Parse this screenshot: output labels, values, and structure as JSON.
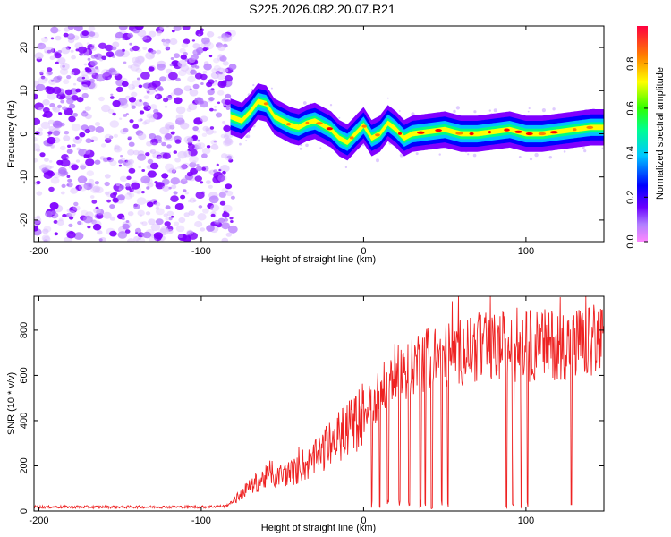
{
  "figure": {
    "title": "S225.2026.082.20.07.R21"
  },
  "chart_data": [
    {
      "type": "heatmap",
      "name": "spectrogram",
      "xlabel": "Height of straight line (km)",
      "ylabel": "Frequency (Hz)",
      "xlim": [
        -203,
        148
      ],
      "ylim": [
        -25,
        25
      ],
      "xticks": [
        -200,
        -100,
        0,
        100
      ],
      "yticks": [
        -20,
        -10,
        0,
        10,
        20
      ],
      "noise_region_x": [
        -203,
        -80
      ],
      "signal_region_x": [
        -82,
        148
      ],
      "colormap": [
        "#ff00ff",
        "#8000ff",
        "#0000ff",
        "#00c0ff",
        "#00ff80",
        "#40ff00",
        "#ffff00",
        "#ff8000",
        "#ff0000"
      ],
      "signal_ridge": {
        "x": [
          -82,
          -75,
          -70,
          -65,
          -60,
          -55,
          -50,
          -45,
          -40,
          -35,
          -30,
          -25,
          -20,
          -15,
          -10,
          -5,
          0,
          5,
          10,
          15,
          20,
          25,
          30,
          40,
          50,
          60,
          70,
          80,
          90,
          100,
          110,
          120,
          130,
          140,
          148
        ],
        "y": [
          4,
          3,
          5,
          7.5,
          7,
          4,
          3,
          2,
          1.5,
          2.5,
          3,
          2,
          1,
          -1,
          -2,
          0,
          2,
          -1,
          0,
          2.5,
          1,
          -1,
          0,
          0.5,
          1,
          0,
          0,
          0.5,
          1,
          0,
          0,
          0.5,
          1,
          1.5,
          1.5
        ]
      },
      "colorbar": {
        "label": "Normalized spectral amplitude",
        "ticks": [
          0.0,
          0.2,
          0.4,
          0.6,
          0.8
        ],
        "tick_labels": [
          "0.0",
          "0.2",
          "0.4",
          "0.6",
          "0.8"
        ],
        "range": [
          0,
          0.97
        ]
      }
    },
    {
      "type": "line",
      "name": "snr",
      "xlabel": "Height of straight line (km)",
      "ylabel": "SNR (10 * v/v)",
      "xlim": [
        -203,
        148
      ],
      "ylim": [
        0,
        950
      ],
      "xticks": [
        -200,
        -100,
        0,
        100
      ],
      "yticks": [
        0,
        200,
        400,
        600,
        800
      ],
      "color": "#ee2222",
      "trend": {
        "x": [
          -203,
          -150,
          -100,
          -85,
          -80,
          -70,
          -60,
          -50,
          -40,
          -30,
          -20,
          -10,
          0,
          10,
          20,
          30,
          40,
          50,
          60,
          70,
          80,
          90,
          100,
          110,
          120,
          130,
          140,
          148
        ],
        "y": [
          18,
          18,
          18,
          22,
          45,
          110,
          150,
          160,
          180,
          230,
          300,
          360,
          430,
          520,
          600,
          650,
          680,
          690,
          710,
          720,
          720,
          730,
          730,
          735,
          740,
          740,
          745,
          750
        ]
      },
      "dropouts_x": [
        5,
        10,
        15,
        22,
        28,
        35,
        38,
        42,
        48,
        52,
        88,
        92,
        97,
        101,
        128
      ]
    }
  ]
}
